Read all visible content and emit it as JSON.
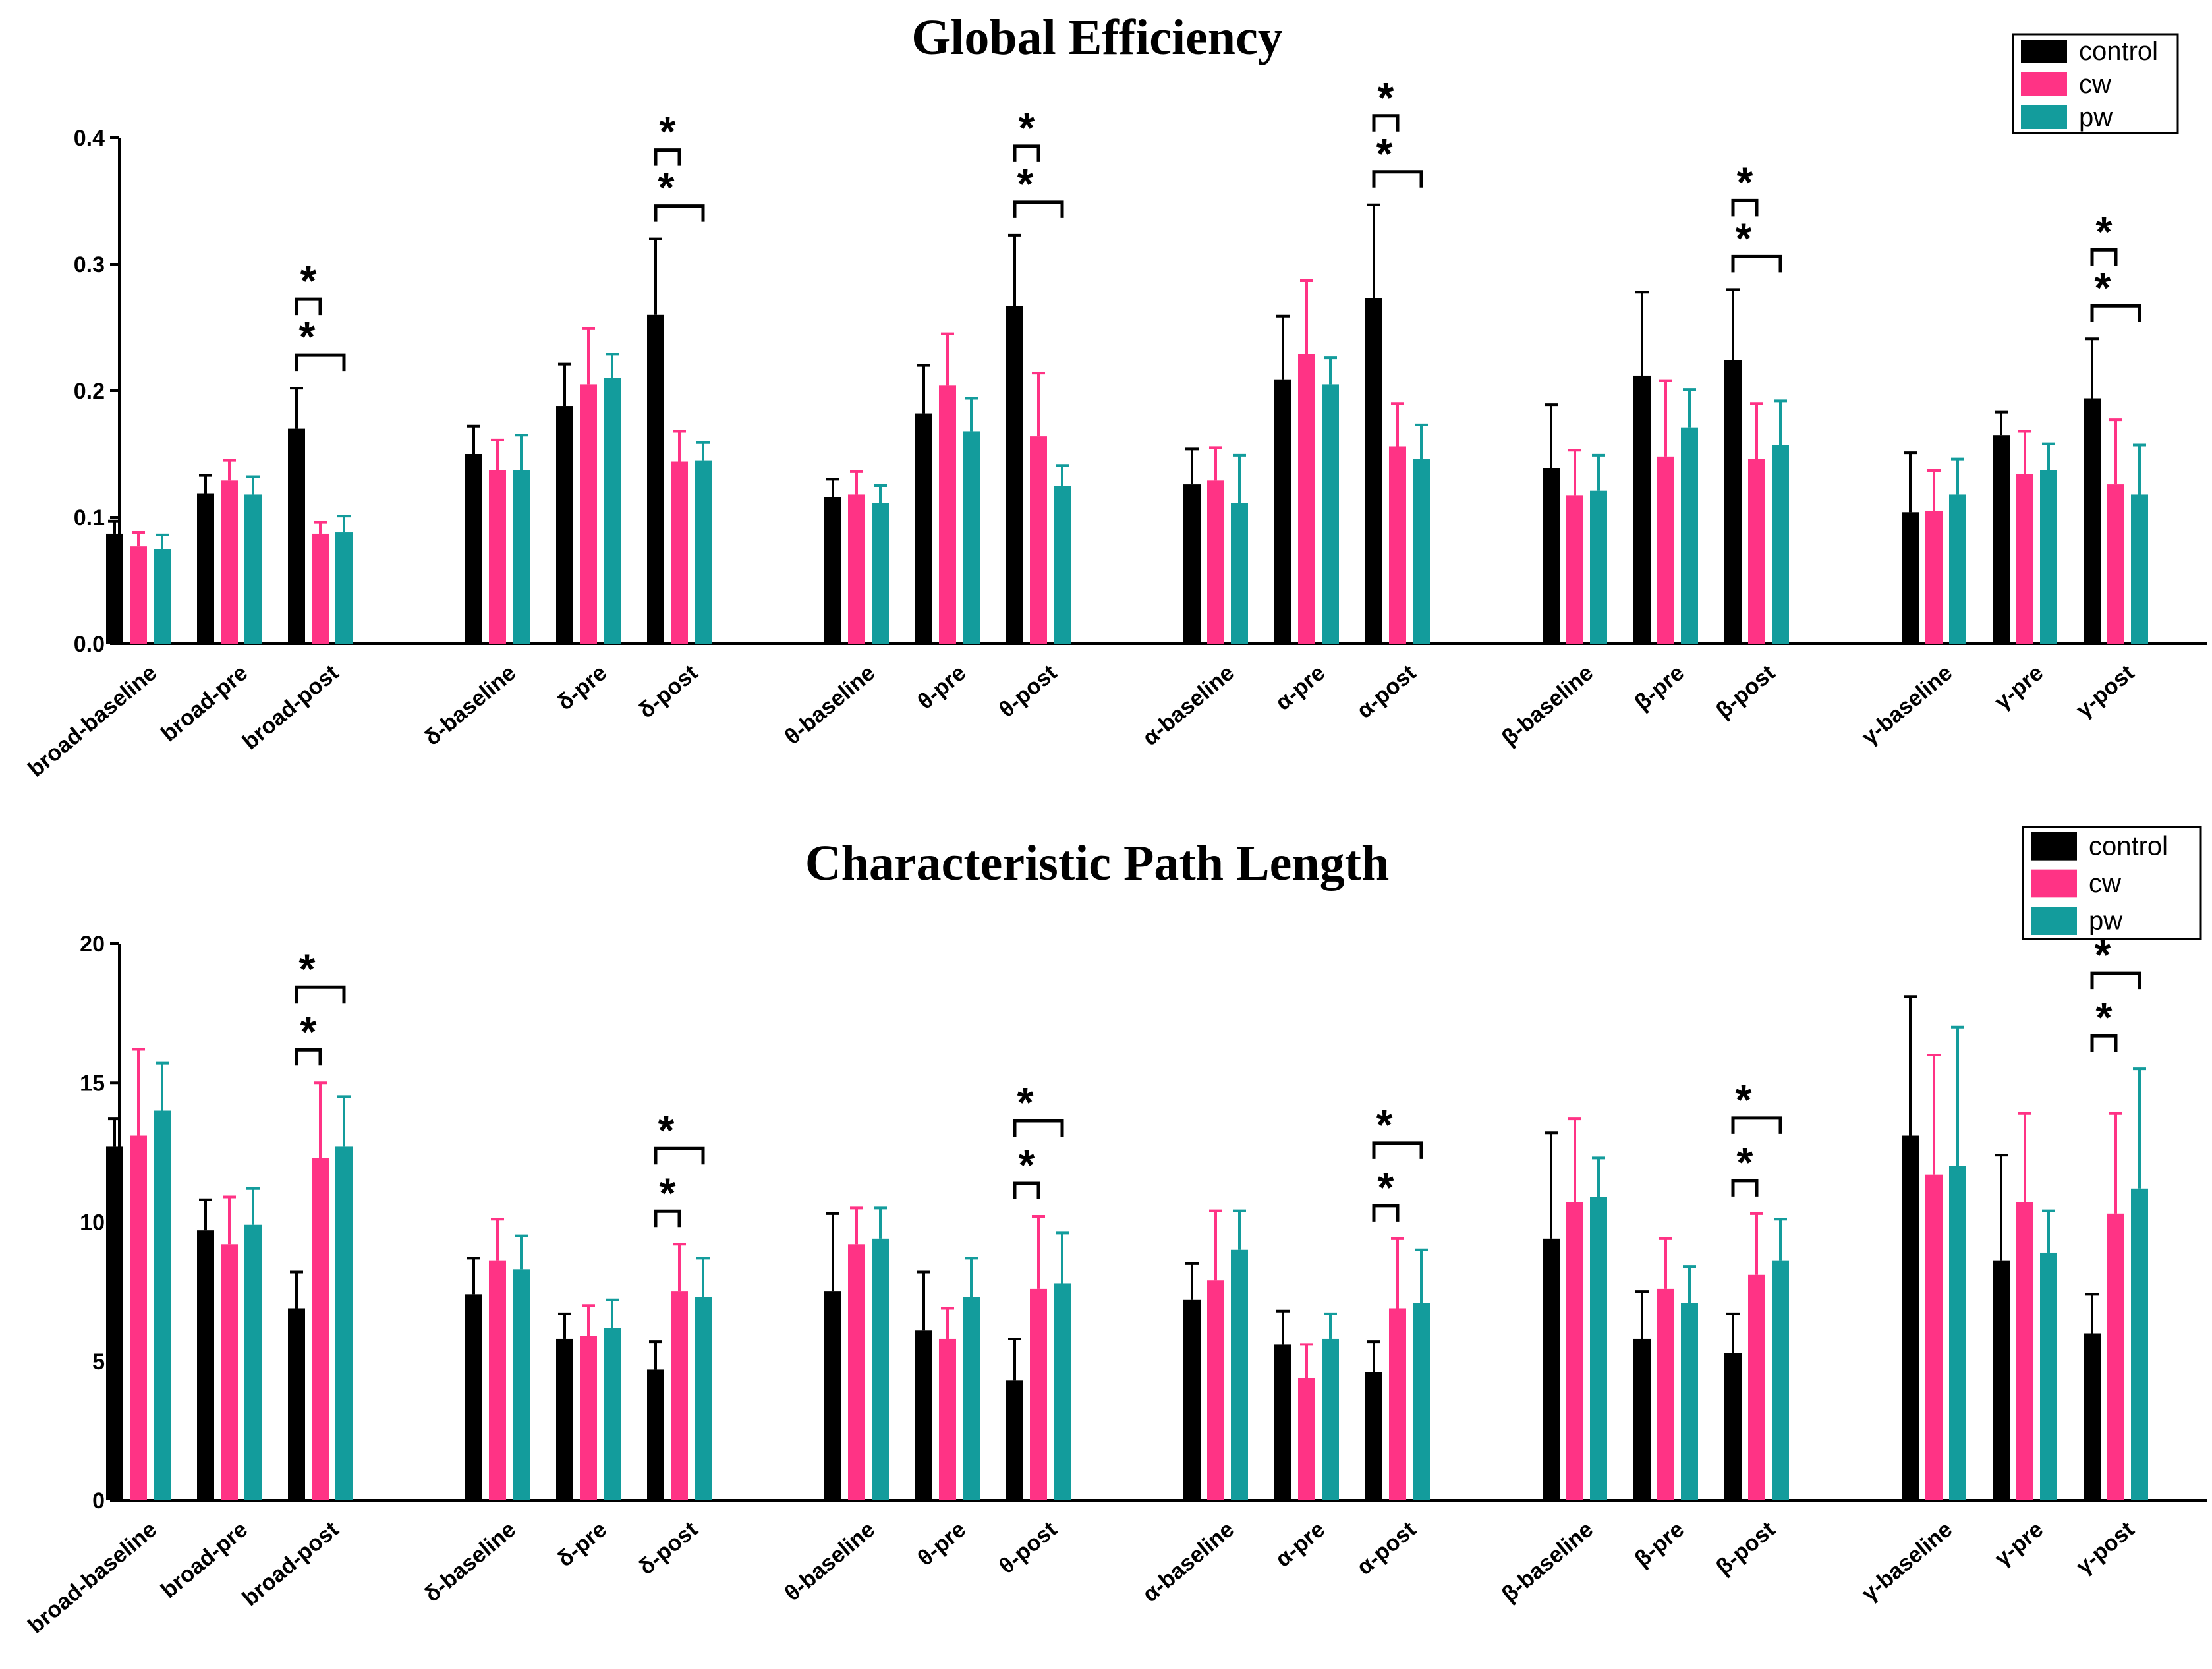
{
  "colors": {
    "control": "#000000",
    "cw": "#ff3385",
    "pw": "#139c9c"
  },
  "chart_data": [
    {
      "type": "bar",
      "title": "Global Efficiency",
      "xlabel": "",
      "ylabel": "",
      "ylim": [
        0,
        0.4
      ],
      "yticks": [
        "0.0",
        "0.1",
        "0.2",
        "0.3",
        "0.4"
      ],
      "legend": {
        "position": "top-right",
        "entries": [
          "control",
          "cw",
          "pw"
        ]
      },
      "categories": [
        "broad-baseline",
        "broad-pre",
        "broad-post",
        "δ-baseline",
        "δ-pre",
        "δ-post",
        "θ-baseline",
        "θ-pre",
        "θ-post",
        "α-baseline",
        "α-pre",
        "α-post",
        "β-baseline",
        "β-pre",
        "β-post",
        "γ-baseline",
        "γ-pre",
        "γ-post"
      ],
      "series": [
        {
          "name": "control",
          "values": [
            0.087,
            0.119,
            0.17,
            0.15,
            0.188,
            0.26,
            0.116,
            0.182,
            0.267,
            0.126,
            0.209,
            0.273,
            0.139,
            0.212,
            0.224,
            0.104,
            0.165,
            0.194
          ],
          "errors": [
            0.01,
            0.014,
            0.032,
            0.022,
            0.033,
            0.06,
            0.014,
            0.038,
            0.056,
            0.028,
            0.05,
            0.074,
            0.05,
            0.066,
            0.056,
            0.047,
            0.018,
            0.047
          ]
        },
        {
          "name": "cw",
          "values": [
            0.077,
            0.129,
            0.087,
            0.137,
            0.205,
            0.144,
            0.118,
            0.204,
            0.164,
            0.129,
            0.229,
            0.156,
            0.117,
            0.148,
            0.146,
            0.105,
            0.134,
            0.126
          ],
          "errors": [
            0.011,
            0.016,
            0.009,
            0.024,
            0.044,
            0.024,
            0.018,
            0.041,
            0.05,
            0.026,
            0.058,
            0.034,
            0.036,
            0.06,
            0.044,
            0.032,
            0.034,
            0.051
          ]
        },
        {
          "name": "pw",
          "values": [
            0.075,
            0.118,
            0.088,
            0.137,
            0.21,
            0.145,
            0.111,
            0.168,
            0.125,
            0.111,
            0.205,
            0.146,
            0.121,
            0.171,
            0.157,
            0.118,
            0.137,
            0.118
          ],
          "errors": [
            0.011,
            0.014,
            0.013,
            0.028,
            0.019,
            0.014,
            0.014,
            0.026,
            0.016,
            0.038,
            0.021,
            0.027,
            0.028,
            0.03,
            0.035,
            0.028,
            0.021,
            0.039
          ]
        }
      ],
      "significance": [
        {
          "category": "broad-post",
          "pairs": [
            [
              "control",
              "cw"
            ],
            [
              "control",
              "pw"
            ]
          ],
          "label": "*"
        },
        {
          "category": "δ-post",
          "pairs": [
            [
              "control",
              "cw"
            ],
            [
              "control",
              "pw"
            ]
          ],
          "label": "*"
        },
        {
          "category": "θ-post",
          "pairs": [
            [
              "control",
              "cw"
            ],
            [
              "control",
              "pw"
            ]
          ],
          "label": "*"
        },
        {
          "category": "α-post",
          "pairs": [
            [
              "control",
              "cw"
            ],
            [
              "control",
              "pw"
            ]
          ],
          "label": "*"
        },
        {
          "category": "β-post",
          "pairs": [
            [
              "control",
              "cw"
            ],
            [
              "control",
              "pw"
            ]
          ],
          "label": "*"
        },
        {
          "category": "γ-post",
          "pairs": [
            [
              "control",
              "cw"
            ],
            [
              "control",
              "pw"
            ]
          ],
          "label": "*"
        }
      ]
    },
    {
      "type": "bar",
      "title": "Characteristic Path Length",
      "xlabel": "",
      "ylabel": "",
      "ylim": [
        0,
        20
      ],
      "yticks": [
        "0",
        "5",
        "10",
        "15",
        "20"
      ],
      "legend": {
        "position": "top-right",
        "entries": [
          "control",
          "cw",
          "pw"
        ]
      },
      "categories": [
        "broad-baseline",
        "broad-pre",
        "broad-post",
        "δ-baseline",
        "δ-pre",
        "δ-post",
        "θ-baseline",
        "θ-pre",
        "θ-post",
        "α-baseline",
        "α-pre",
        "α-post",
        "β-baseline",
        "β-pre",
        "β-post",
        "γ-baseline",
        "γ-pre",
        "γ-post"
      ],
      "series": [
        {
          "name": "control",
          "values": [
            12.7,
            9.7,
            6.9,
            7.4,
            5.8,
            4.7,
            7.5,
            6.1,
            4.3,
            7.2,
            5.6,
            4.6,
            9.4,
            5.8,
            5.3,
            13.1,
            8.6,
            6.0
          ],
          "errors": [
            1.0,
            1.1,
            1.3,
            1.3,
            0.9,
            1.0,
            2.8,
            2.1,
            1.5,
            1.3,
            1.2,
            1.1,
            3.8,
            1.7,
            1.4,
            5.0,
            3.8,
            1.4
          ]
        },
        {
          "name": "cw",
          "values": [
            13.1,
            9.2,
            12.3,
            8.6,
            5.9,
            7.5,
            9.2,
            5.8,
            7.6,
            7.9,
            4.4,
            6.9,
            10.7,
            7.6,
            8.1,
            11.7,
            10.7,
            10.3
          ],
          "errors": [
            3.1,
            1.7,
            2.7,
            1.5,
            1.1,
            1.7,
            1.3,
            1.1,
            2.6,
            2.5,
            1.2,
            2.5,
            3.0,
            1.8,
            2.2,
            4.3,
            3.2,
            3.6
          ]
        },
        {
          "name": "pw",
          "values": [
            14.0,
            9.9,
            12.7,
            8.3,
            6.2,
            7.3,
            9.4,
            7.3,
            7.8,
            9.0,
            5.8,
            7.1,
            10.9,
            7.1,
            8.6,
            12.0,
            8.9,
            11.2
          ],
          "errors": [
            1.7,
            1.3,
            1.8,
            1.2,
            1.0,
            1.4,
            1.1,
            1.4,
            1.8,
            1.4,
            0.9,
            1.9,
            1.4,
            1.3,
            1.5,
            5.0,
            1.5,
            4.3
          ]
        }
      ],
      "significance": [
        {
          "category": "broad-post",
          "pairs": [
            [
              "control",
              "cw"
            ],
            [
              "control",
              "pw"
            ]
          ],
          "label": "*"
        },
        {
          "category": "δ-post",
          "pairs": [
            [
              "control",
              "cw"
            ],
            [
              "control",
              "pw"
            ]
          ],
          "label": "*"
        },
        {
          "category": "θ-post",
          "pairs": [
            [
              "control",
              "cw"
            ],
            [
              "control",
              "pw"
            ]
          ],
          "label": "*"
        },
        {
          "category": "α-post",
          "pairs": [
            [
              "control",
              "cw"
            ],
            [
              "control",
              "pw"
            ]
          ],
          "label": "*"
        },
        {
          "category": "β-post",
          "pairs": [
            [
              "control",
              "cw"
            ],
            [
              "control",
              "pw"
            ]
          ],
          "label": "*"
        },
        {
          "category": "γ-post",
          "pairs": [
            [
              "control",
              "cw"
            ],
            [
              "control",
              "pw"
            ]
          ],
          "label": "*"
        }
      ]
    }
  ]
}
